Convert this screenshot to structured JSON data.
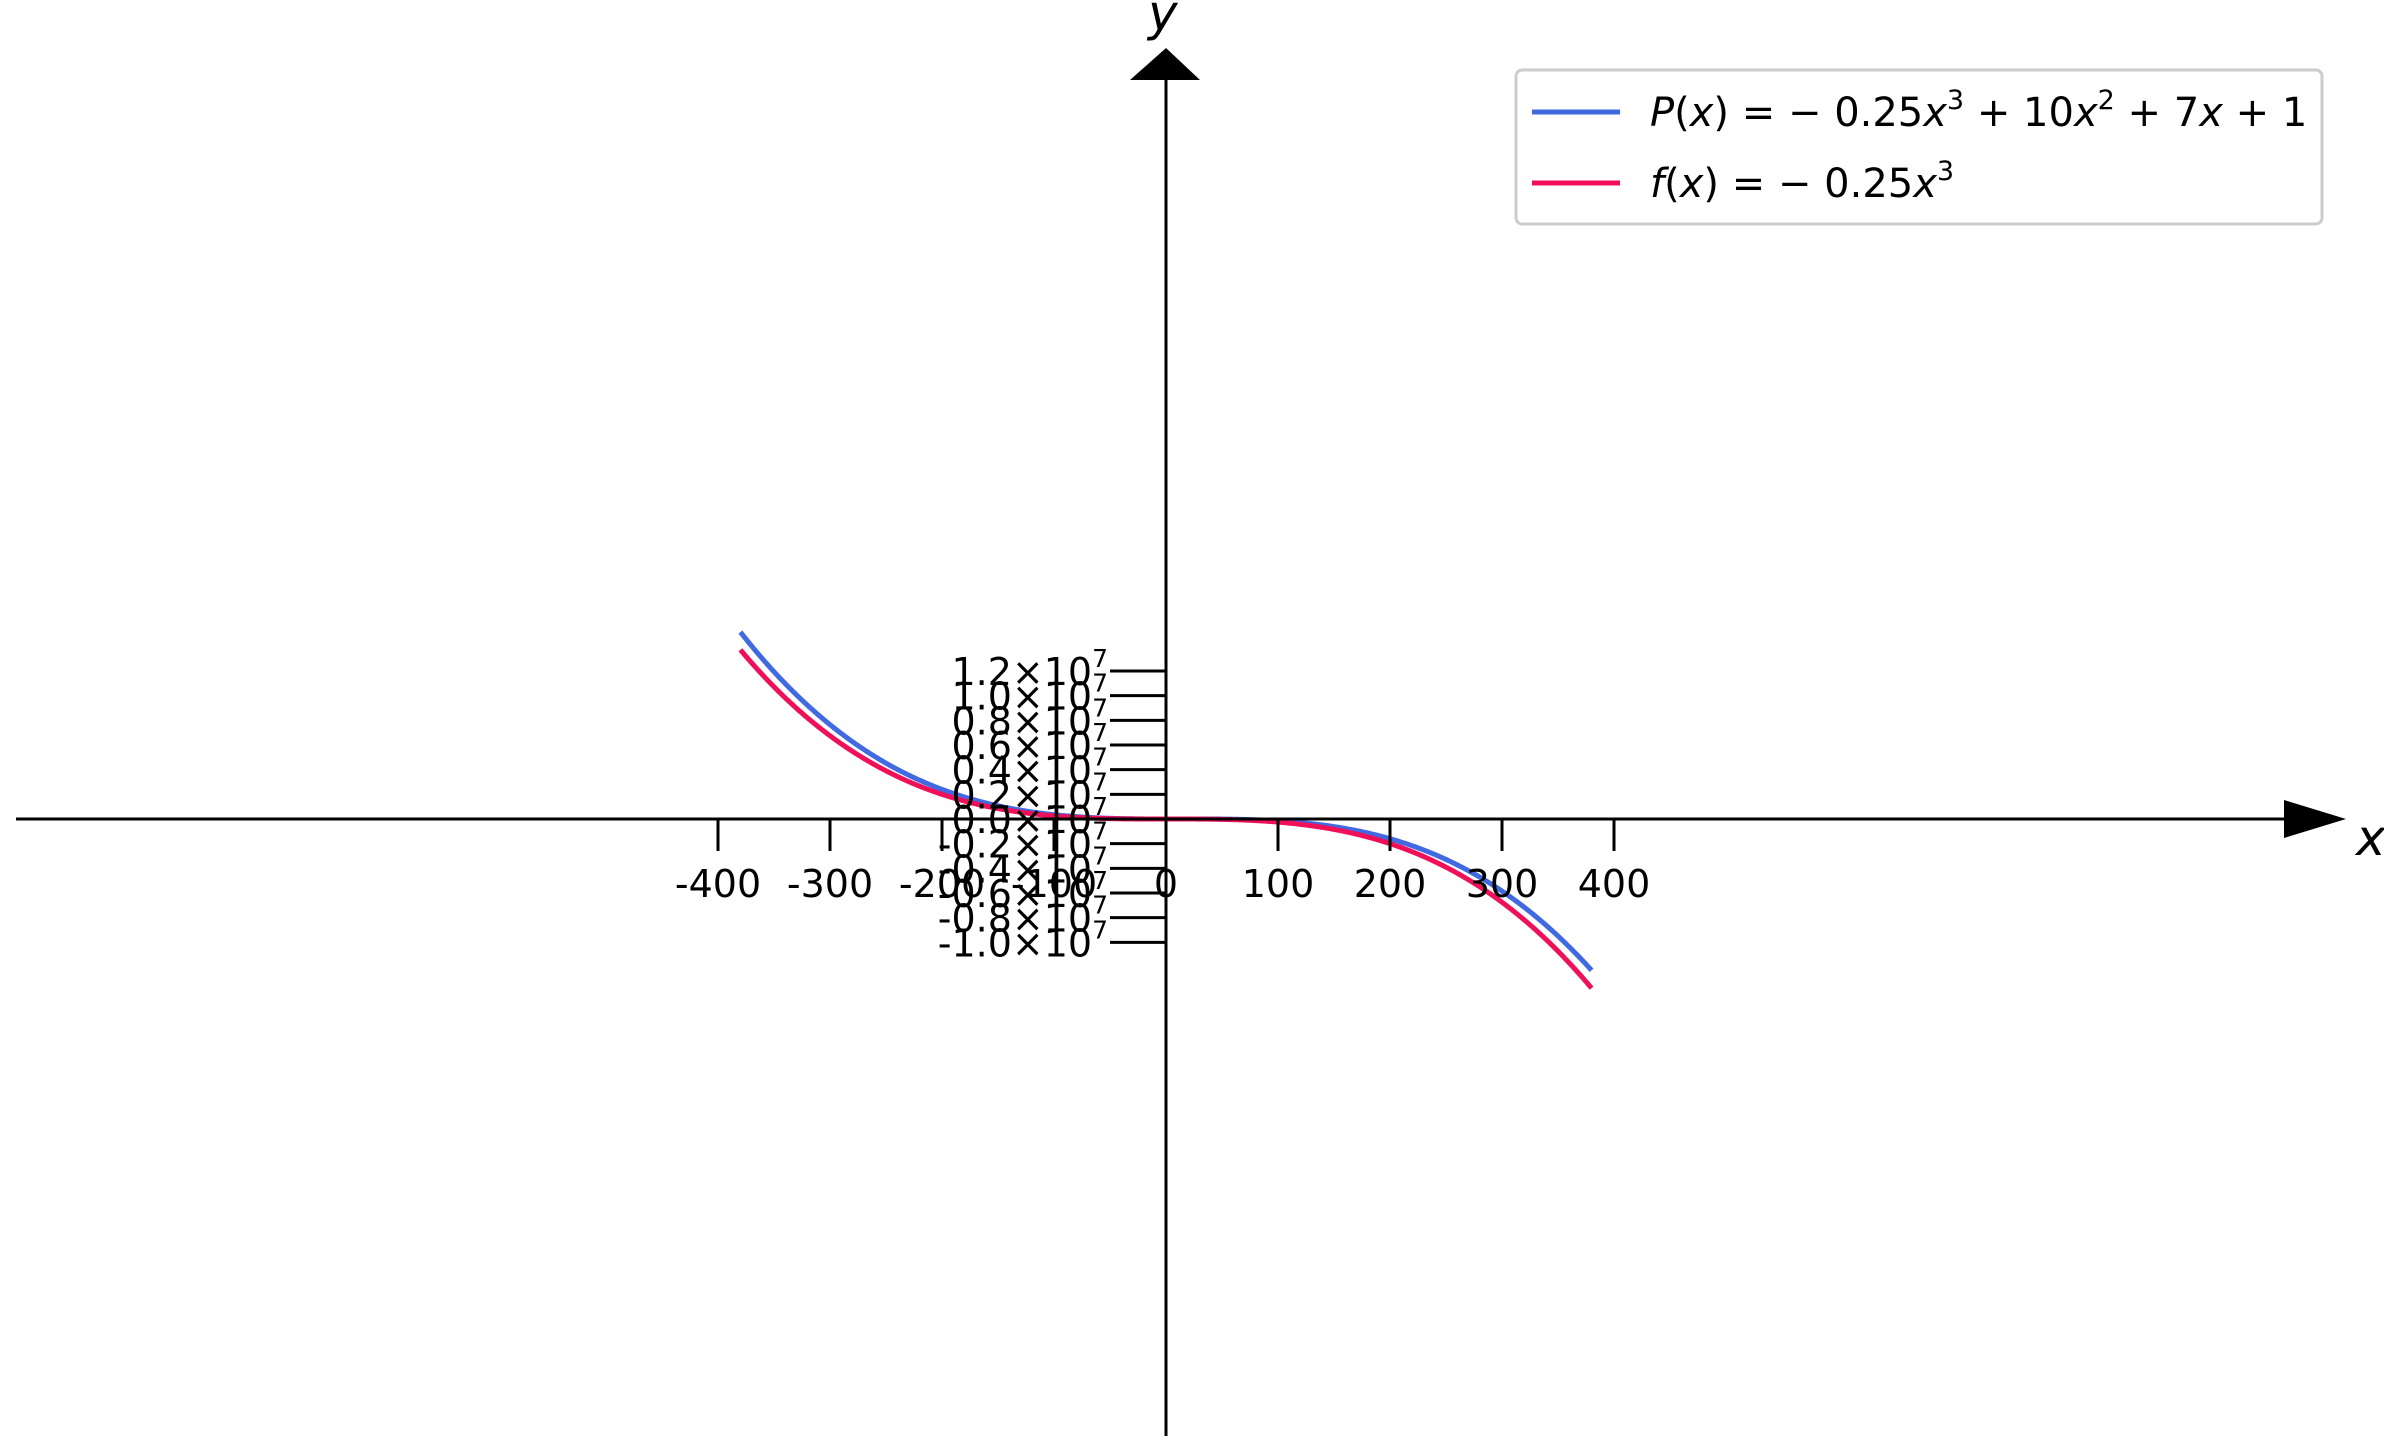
{
  "chart_data": {
    "type": "line",
    "x_axis_label": "x",
    "y_axis_label": "y",
    "xlim": [
      -400,
      400
    ],
    "ylim": [
      -10000000,
      12000000
    ],
    "xticks": [
      {
        "value": -400,
        "label": "-400"
      },
      {
        "value": -300,
        "label": "-300"
      },
      {
        "value": -200,
        "label": "-200"
      },
      {
        "value": -100,
        "label": "-100"
      },
      {
        "value": 0,
        "label": "0"
      },
      {
        "value": 100,
        "label": "100"
      },
      {
        "value": 200,
        "label": "200"
      },
      {
        "value": 300,
        "label": "300"
      },
      {
        "value": 400,
        "label": "400"
      }
    ],
    "yticks": [
      {
        "value": 12000000,
        "base": "1.2×10",
        "exp": "7"
      },
      {
        "value": 10000000,
        "base": "1.0×10",
        "exp": "7"
      },
      {
        "value": 8000000,
        "base": "0.8×10",
        "exp": "7"
      },
      {
        "value": 6000000,
        "base": "0.6×10",
        "exp": "7"
      },
      {
        "value": 4000000,
        "base": "0.4×10",
        "exp": "7"
      },
      {
        "value": 2000000,
        "base": "0.2×10",
        "exp": "7"
      },
      {
        "value": 0,
        "base": "0.0×10",
        "exp": "7"
      },
      {
        "value": -2000000,
        "base": "-0.2×10",
        "exp": "7"
      },
      {
        "value": -4000000,
        "base": "-0.4×10",
        "exp": "7"
      },
      {
        "value": -6000000,
        "base": "-0.6×10",
        "exp": "7"
      },
      {
        "value": -8000000,
        "base": "-0.8×10",
        "exp": "7"
      },
      {
        "value": -10000000,
        "base": "-1.0×10",
        "exp": "7"
      }
    ],
    "series": [
      {
        "name": "P(x) = − 0.25x³ + 10x² + 7x + 1",
        "color": "#4169e1",
        "coefficients": [
          -0.25,
          10,
          7,
          1
        ],
        "x_range": [
          -380,
          380
        ]
      },
      {
        "name": "f(x) = − 0.25x³",
        "color": "#f0105a",
        "coefficients": [
          -0.25,
          0,
          0,
          0
        ],
        "x_range": [
          -380,
          380
        ]
      }
    ],
    "legend": {
      "position": "top-right",
      "entries": [
        {
          "color": "#4169e1",
          "parts": [
            {
              "t": "P",
              "style": "italic"
            },
            {
              "t": "(",
              "style": "normal"
            },
            {
              "t": "x",
              "style": "italic"
            },
            {
              "t": ") = − 0.25",
              "style": "normal"
            },
            {
              "t": "x",
              "style": "italic"
            },
            {
              "t": "3",
              "style": "sup"
            },
            {
              "t": " + 10",
              "style": "normal"
            },
            {
              "t": "x",
              "style": "italic"
            },
            {
              "t": "2",
              "style": "sup"
            },
            {
              "t": " + 7",
              "style": "normal"
            },
            {
              "t": "x",
              "style": "italic"
            },
            {
              "t": " + 1",
              "style": "normal"
            }
          ]
        },
        {
          "color": "#f0105a",
          "parts": [
            {
              "t": "f",
              "style": "italic"
            },
            {
              "t": "(",
              "style": "normal"
            },
            {
              "t": "x",
              "style": "italic"
            },
            {
              "t": ") = − 0.25",
              "style": "normal"
            },
            {
              "t": "x",
              "style": "italic"
            },
            {
              "t": "3",
              "style": "sup"
            }
          ]
        }
      ]
    },
    "grid": false
  }
}
